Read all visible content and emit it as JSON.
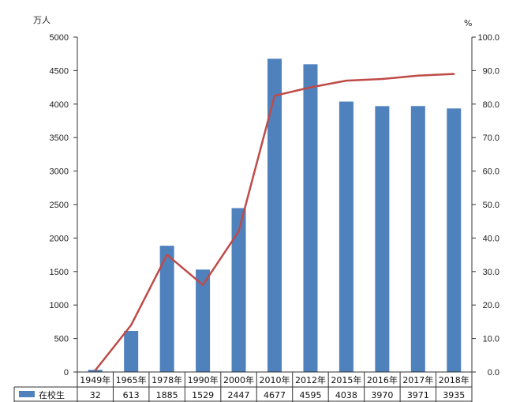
{
  "chart_data": {
    "type": "bar",
    "categories": [
      "1949年",
      "1965年",
      "1978年",
      "1990年",
      "2000年",
      "2010年",
      "2012年",
      "2015年",
      "2016年",
      "2017年",
      "2018年"
    ],
    "series": [
      {
        "name": "在校生",
        "kind": "bar",
        "axis": "left",
        "color": "#4f81bd",
        "values": [
          32,
          613,
          1885,
          1529,
          2447,
          4677,
          4595,
          4038,
          3970,
          3971,
          3935
        ]
      },
      {
        "kind": "line",
        "axis": "right",
        "color": "#be4b48",
        "values": [
          0.5,
          14.0,
          35.0,
          26.0,
          42.0,
          82.5,
          85.0,
          87.0,
          87.5,
          88.5,
          89.0
        ]
      }
    ],
    "y_left": {
      "unit": "万人",
      "min": 0,
      "max": 5000,
      "step": 500,
      "ticks": [
        "0",
        "500",
        "1000",
        "1500",
        "2000",
        "2500",
        "3000",
        "3500",
        "4000",
        "4500",
        "5000"
      ]
    },
    "y_right": {
      "unit": "%",
      "min": 0,
      "max": 100,
      "step": 10,
      "ticks": [
        "0.0",
        "10.0",
        "20.0",
        "30.0",
        "40.0",
        "50.0",
        "60.0",
        "70.0",
        "80.0",
        "90.0",
        "100.0"
      ]
    },
    "grid": false,
    "legend": "data-table-row",
    "title": ""
  }
}
